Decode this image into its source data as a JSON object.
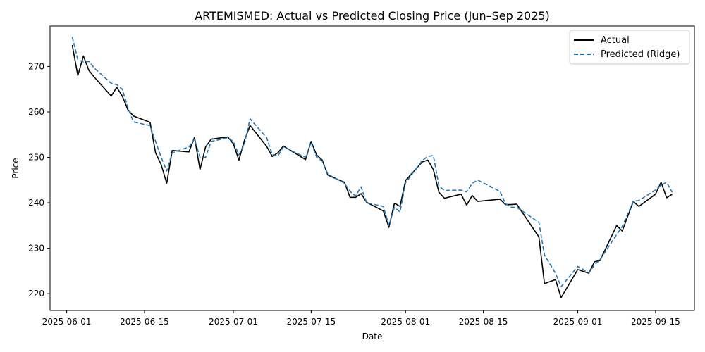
{
  "chart_data": {
    "type": "line",
    "title": "ARTEMISMED: Actual vs Predicted Closing Price (Jun–Sep 2025)",
    "xlabel": "Date",
    "ylabel": "Price",
    "x_range": [
      "2025-05-29",
      "2025-09-22"
    ],
    "ylim": [
      216.3,
      278.9
    ],
    "x_ticks": [
      {
        "date": "2025-06-01",
        "label": "2025-06-01"
      },
      {
        "date": "2025-06-15",
        "label": "2025-06-15"
      },
      {
        "date": "2025-07-01",
        "label": "2025-07-01"
      },
      {
        "date": "2025-07-15",
        "label": "2025-07-15"
      },
      {
        "date": "2025-08-01",
        "label": "2025-08-01"
      },
      {
        "date": "2025-08-15",
        "label": "2025-08-15"
      },
      {
        "date": "2025-09-01",
        "label": "2025-09-01"
      },
      {
        "date": "2025-09-15",
        "label": "2025-09-15"
      }
    ],
    "y_ticks": [
      220,
      230,
      240,
      250,
      260,
      270
    ],
    "grid": false,
    "legend": "top-right",
    "series": [
      {
        "name": "Actual",
        "color": "#000000",
        "style": "solid",
        "points": [
          [
            "2025-06-02",
            274.7
          ],
          [
            "2025-06-03",
            268.0
          ],
          [
            "2025-06-04",
            272.3
          ],
          [
            "2025-06-05",
            269.1
          ],
          [
            "2025-06-06",
            267.6
          ],
          [
            "2025-06-09",
            263.5
          ],
          [
            "2025-06-10",
            265.4
          ],
          [
            "2025-06-11",
            263.5
          ],
          [
            "2025-06-12",
            260.5
          ],
          [
            "2025-06-13",
            259.1
          ],
          [
            "2025-06-16",
            257.7
          ],
          [
            "2025-06-17",
            251.0
          ],
          [
            "2025-06-18",
            248.4
          ],
          [
            "2025-06-19",
            244.3
          ],
          [
            "2025-06-20",
            251.5
          ],
          [
            "2025-06-23",
            251.2
          ],
          [
            "2025-06-24",
            254.4
          ],
          [
            "2025-06-25",
            247.3
          ],
          [
            "2025-06-26",
            252.3
          ],
          [
            "2025-06-27",
            254.0
          ],
          [
            "2025-06-30",
            254.5
          ],
          [
            "2025-07-01",
            253.0
          ],
          [
            "2025-07-02",
            249.4
          ],
          [
            "2025-07-03",
            253.8
          ],
          [
            "2025-07-04",
            257.0
          ],
          [
            "2025-07-07",
            252.4
          ],
          [
            "2025-07-08",
            250.2
          ],
          [
            "2025-07-09",
            251.0
          ],
          [
            "2025-07-10",
            252.5
          ],
          [
            "2025-07-14",
            249.5
          ],
          [
            "2025-07-15",
            253.5
          ],
          [
            "2025-07-16",
            250.5
          ],
          [
            "2025-07-17",
            249.4
          ],
          [
            "2025-07-18",
            246.1
          ],
          [
            "2025-07-21",
            244.5
          ],
          [
            "2025-07-22",
            241.2
          ],
          [
            "2025-07-23",
            241.2
          ],
          [
            "2025-07-24",
            242.0
          ],
          [
            "2025-07-25",
            240.1
          ],
          [
            "2025-07-28",
            238.2
          ],
          [
            "2025-07-29",
            234.6
          ],
          [
            "2025-07-30",
            239.9
          ],
          [
            "2025-07-31",
            239.2
          ],
          [
            "2025-08-01",
            244.9
          ],
          [
            "2025-08-04",
            249.0
          ],
          [
            "2025-08-05",
            249.4
          ],
          [
            "2025-08-06",
            247.3
          ],
          [
            "2025-08-07",
            242.3
          ],
          [
            "2025-08-08",
            241.0
          ],
          [
            "2025-08-11",
            241.9
          ],
          [
            "2025-08-12",
            239.5
          ],
          [
            "2025-08-13",
            241.6
          ],
          [
            "2025-08-14",
            240.3
          ],
          [
            "2025-08-18",
            240.8
          ],
          [
            "2025-08-19",
            239.6
          ],
          [
            "2025-08-20",
            239.6
          ],
          [
            "2025-08-21",
            239.7
          ],
          [
            "2025-08-25",
            232.5
          ],
          [
            "2025-08-26",
            222.2
          ],
          [
            "2025-08-28",
            223.1
          ],
          [
            "2025-08-29",
            219.1
          ],
          [
            "2025-09-01",
            225.3
          ],
          [
            "2025-09-03",
            224.5
          ],
          [
            "2025-09-04",
            227.0
          ],
          [
            "2025-09-05",
            227.3
          ],
          [
            "2025-09-08",
            235.0
          ],
          [
            "2025-09-09",
            233.8
          ],
          [
            "2025-09-11",
            240.3
          ],
          [
            "2025-09-12",
            239.2
          ],
          [
            "2025-09-15",
            241.9
          ],
          [
            "2025-09-16",
            244.5
          ],
          [
            "2025-09-17",
            241.1
          ],
          [
            "2025-09-18",
            241.9
          ]
        ]
      },
      {
        "name": "Predicted (Ridge)",
        "color": "#1f77b4",
        "style": "dashed",
        "points": [
          [
            "2025-06-02",
            276.5
          ],
          [
            "2025-06-03",
            271.5
          ],
          [
            "2025-06-04",
            271.0
          ],
          [
            "2025-06-05",
            271.1
          ],
          [
            "2025-06-06",
            269.6
          ],
          [
            "2025-06-09",
            266.3
          ],
          [
            "2025-06-10",
            266.0
          ],
          [
            "2025-06-11",
            265.0
          ],
          [
            "2025-06-12",
            261.0
          ],
          [
            "2025-06-13",
            257.8
          ],
          [
            "2025-06-16",
            257.0
          ],
          [
            "2025-06-17",
            253.5
          ],
          [
            "2025-06-18",
            250.0
          ],
          [
            "2025-06-19",
            247.0
          ],
          [
            "2025-06-20",
            251.0
          ],
          [
            "2025-06-23",
            252.3
          ],
          [
            "2025-06-24",
            254.0
          ],
          [
            "2025-06-25",
            250.0
          ],
          [
            "2025-06-26",
            250.0
          ],
          [
            "2025-06-27",
            253.5
          ],
          [
            "2025-06-30",
            254.3
          ],
          [
            "2025-07-01",
            253.5
          ],
          [
            "2025-07-02",
            250.5
          ],
          [
            "2025-07-03",
            253.0
          ],
          [
            "2025-07-04",
            258.5
          ],
          [
            "2025-07-07",
            254.3
          ],
          [
            "2025-07-08",
            250.6
          ],
          [
            "2025-07-09",
            250.3
          ],
          [
            "2025-07-10",
            252.3
          ],
          [
            "2025-07-14",
            250.0
          ],
          [
            "2025-07-15",
            253.3
          ],
          [
            "2025-07-16",
            250.0
          ],
          [
            "2025-07-17",
            249.2
          ],
          [
            "2025-07-18",
            246.3
          ],
          [
            "2025-07-21",
            244.3
          ],
          [
            "2025-07-22",
            242.5
          ],
          [
            "2025-07-23",
            241.5
          ],
          [
            "2025-07-24",
            243.5
          ],
          [
            "2025-07-25",
            240.0
          ],
          [
            "2025-07-28",
            239.2
          ],
          [
            "2025-07-29",
            235.0
          ],
          [
            "2025-07-30",
            239.0
          ],
          [
            "2025-07-31",
            238.0
          ],
          [
            "2025-08-01",
            244.4
          ],
          [
            "2025-08-04",
            249.3
          ],
          [
            "2025-08-05",
            250.2
          ],
          [
            "2025-08-06",
            250.4
          ],
          [
            "2025-08-07",
            243.7
          ],
          [
            "2025-08-08",
            242.7
          ],
          [
            "2025-08-11",
            242.8
          ],
          [
            "2025-08-12",
            242.4
          ],
          [
            "2025-08-13",
            244.3
          ],
          [
            "2025-08-14",
            245.0
          ],
          [
            "2025-08-18",
            242.5
          ],
          [
            "2025-08-19",
            239.8
          ],
          [
            "2025-08-20",
            239.0
          ],
          [
            "2025-08-21",
            239.0
          ],
          [
            "2025-08-25",
            235.7
          ],
          [
            "2025-08-26",
            228.5
          ],
          [
            "2025-08-28",
            224.5
          ],
          [
            "2025-08-29",
            221.5
          ],
          [
            "2025-09-01",
            226.0
          ],
          [
            "2025-09-03",
            224.6
          ],
          [
            "2025-09-04",
            226.3
          ],
          [
            "2025-09-05",
            227.5
          ],
          [
            "2025-09-08",
            233.0
          ],
          [
            "2025-09-09",
            234.8
          ],
          [
            "2025-09-11",
            240.3
          ],
          [
            "2025-09-12",
            240.5
          ],
          [
            "2025-09-15",
            242.8
          ],
          [
            "2025-09-16",
            243.9
          ],
          [
            "2025-09-17",
            244.5
          ],
          [
            "2025-09-18",
            242.3
          ]
        ]
      }
    ]
  }
}
